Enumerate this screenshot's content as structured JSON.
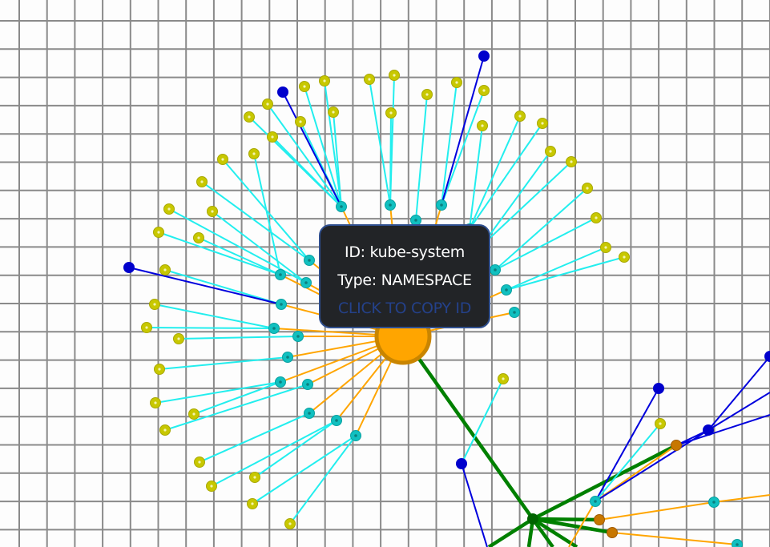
{
  "tooltip": {
    "id_line": "ID: kube-system",
    "type_line": "Type: NAMESPACE",
    "copy_label": "CLICK TO COPY ID"
  },
  "colors": {
    "background": "#fdfdfd",
    "grid": "#8a8a8a",
    "namespace_node": "#ffa500",
    "namespace_border": "#c98500",
    "pod_node": "#11c0c0",
    "container_node": "#c8c800",
    "service_node": "#0000cc",
    "cluster_node": "#006400",
    "edge_namespace_pod": "#ffa500",
    "edge_pod_container": "#22eeee",
    "edge_service": "#0000dd",
    "edge_cluster": "#008000",
    "other_namespace_node": "#c77700",
    "tooltip_background": "#222427",
    "tooltip_border": "#2f4f8f",
    "tooltip_link": "#24418a"
  }
}
